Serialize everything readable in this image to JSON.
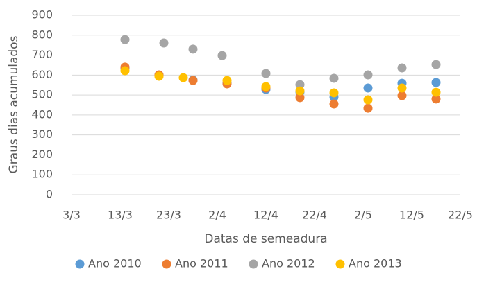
{
  "chart_data": {
    "type": "scatter",
    "x_label": "Datas de semeadura",
    "y_label": "Graus dias acumulados",
    "xlim": [
      62,
      142
    ],
    "xticks": [
      {
        "value": 62,
        "label": "3/3"
      },
      {
        "value": 72,
        "label": "13/3"
      },
      {
        "value": 82,
        "label": "23/3"
      },
      {
        "value": 92,
        "label": "2/4"
      },
      {
        "value": 102,
        "label": "12/4"
      },
      {
        "value": 112,
        "label": "22/4"
      },
      {
        "value": 122,
        "label": "2/5"
      },
      {
        "value": 132,
        "label": "12/5"
      },
      {
        "value": 142,
        "label": "22/5"
      }
    ],
    "ylim": [
      0,
      900
    ],
    "yticks": [
      0,
      100,
      200,
      300,
      400,
      500,
      600,
      700,
      800,
      900
    ],
    "grid": true,
    "legend": "bottom",
    "series": [
      {
        "name": "Ano 2010",
        "color": "#5b9bd5",
        "x": [
          73,
          80,
          87,
          94,
          102,
          109,
          116,
          123,
          130,
          137
        ],
        "values": [
          635,
          600,
          575,
          560,
          528,
          515,
          490,
          535,
          559,
          563
        ]
      },
      {
        "name": "Ano 2011",
        "color": "#ed7d31",
        "x": [
          73,
          80,
          87,
          94,
          102,
          109,
          116,
          123,
          130,
          137
        ],
        "values": [
          640,
          601,
          573,
          556,
          535,
          487,
          455,
          434,
          497,
          480
        ]
      },
      {
        "name": "Ano 2012",
        "color": "#a5a5a5",
        "x": [
          73,
          81,
          87,
          93,
          102,
          109,
          116,
          123,
          130,
          137
        ],
        "values": [
          778,
          761,
          730,
          698,
          608,
          552,
          584,
          601,
          636,
          653
        ]
      },
      {
        "name": "Ano 2013",
        "color": "#ffc000",
        "x": [
          73,
          80,
          85,
          94,
          102,
          109,
          116,
          123,
          130,
          137
        ],
        "values": [
          622,
          594,
          587,
          573,
          542,
          521,
          511,
          476,
          535,
          514
        ]
      }
    ]
  }
}
